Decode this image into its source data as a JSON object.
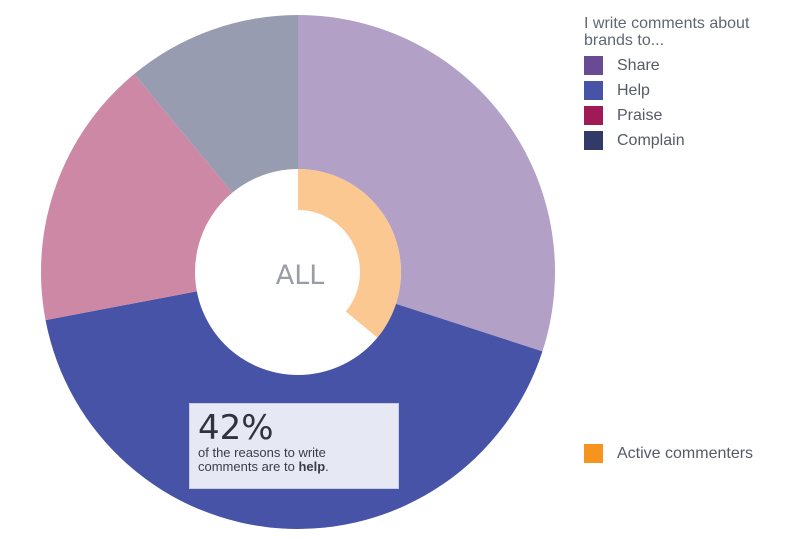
{
  "chart_data": {
    "type": "pie",
    "center_label": "ALL",
    "outer_series": {
      "slices": [
        {
          "label": "Share",
          "value": 30,
          "color": "#b2a0c6"
        },
        {
          "label": "Help",
          "value": 42,
          "color": "#4653a6"
        },
        {
          "label": "Praise",
          "value": 17,
          "color": "#cc88a4"
        },
        {
          "label": "Complain",
          "value": 11,
          "color": "#979cb0"
        }
      ]
    },
    "inner_series": {
      "label": "Active commenters",
      "value": 36,
      "color": "#fac890"
    },
    "legend": {
      "title": "I write comments about brands to...",
      "items": [
        {
          "label": "Share",
          "color": "#6a4a93"
        },
        {
          "label": "Help",
          "color": "#4653a6"
        },
        {
          "label": "Praise",
          "color": "#a01a55"
        },
        {
          "label": "Complain",
          "color": "#323b68"
        }
      ],
      "secondary": {
        "label": "Active commenters",
        "color": "#f7941d"
      },
      "placement": "right"
    },
    "callout": {
      "percent": "42%",
      "line1": "of the reasons to write",
      "line2_prefix": "comments are to ",
      "line2_bold": "help",
      "line2_suffix": "."
    }
  }
}
